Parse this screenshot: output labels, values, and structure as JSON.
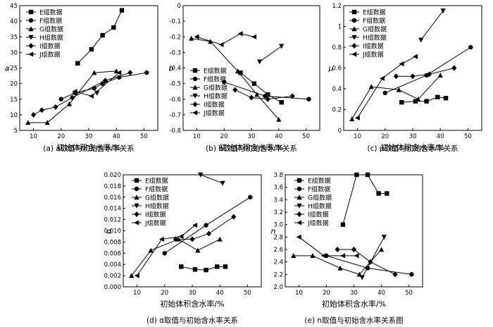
{
  "legend_labels": [
    "E组数据",
    "F组数据",
    "G组数据",
    "H组数据",
    "I组数据",
    "J组数据"
  ],
  "chart_data": [
    {
      "id": "a",
      "type": "line",
      "caption": "(a) a取值与初始含水率关系",
      "xlabel": "初始体积含水率/%",
      "ylabel": "a",
      "xlim": [
        5,
        55
      ],
      "ylim": [
        5,
        45
      ],
      "xticks": [
        10,
        20,
        30,
        40,
        50
      ],
      "yticks": [
        5,
        10,
        15,
        20,
        25,
        30,
        35,
        40,
        45
      ],
      "legend": "top-left",
      "series": [
        {
          "name": "E组数据",
          "marker": "square",
          "x": [
            26,
            31,
            35,
            39,
            42
          ],
          "y": [
            26.5,
            31,
            35.5,
            38,
            43.5
          ]
        },
        {
          "name": "F组数据",
          "marker": "circle",
          "x": [
            20,
            25,
            32,
            35,
            41,
            51
          ],
          "y": [
            15,
            17,
            18.5,
            20,
            22,
            23.5
          ]
        },
        {
          "name": "G组数据",
          "marker": "triangle-up",
          "x": [
            8,
            15,
            23,
            32,
            40
          ],
          "y": [
            7.5,
            7.5,
            13.5,
            23.5,
            24
          ]
        },
        {
          "name": "H组数据",
          "marker": "triangle-down",
          "x": [
            33
          ],
          "y": [
            17
          ]
        },
        {
          "name": "I组数据",
          "marker": "diamond",
          "x": [
            10,
            13,
            18,
            24,
            36,
            45
          ],
          "y": [
            10,
            11.5,
            12.5,
            15.5,
            21,
            23.5
          ]
        },
        {
          "name": "J组数据",
          "marker": "triangle-left",
          "x": [
            25,
            31,
            41
          ],
          "y": [
            17.5,
            16,
            23.5
          ]
        }
      ]
    },
    {
      "id": "b",
      "type": "line",
      "caption": "(b) b取值与初始含水率关系",
      "xlabel": "初始体积含水率/%",
      "ylabel": "b",
      "xlim": [
        5,
        55
      ],
      "ylim": [
        -0.8,
        0
      ],
      "xticks": [
        10,
        20,
        30,
        40,
        50
      ],
      "yticks": [
        0,
        -0.1,
        -0.2,
        -0.3,
        -0.4,
        -0.5,
        -0.6,
        -0.7,
        -0.8
      ],
      "legend": "bottom-left",
      "series": [
        {
          "name": "E组数据",
          "marker": "square",
          "x": [
            26,
            31,
            36,
            41
          ],
          "y": [
            -0.43,
            -0.5,
            -0.57,
            -0.62
          ]
        },
        {
          "name": "F组数据",
          "marker": "circle",
          "x": [
            20,
            35,
            51
          ],
          "y": [
            -0.49,
            -0.58,
            -0.6
          ]
        },
        {
          "name": "G组数据",
          "marker": "triangle-up",
          "x": [
            8,
            15,
            25,
            32,
            40
          ],
          "y": [
            -0.21,
            -0.23,
            -0.42,
            -0.57,
            -0.73
          ]
        },
        {
          "name": "H组数据",
          "marker": "triangle-down",
          "x": [
            33,
            41
          ],
          "y": [
            -0.36,
            -0.26
          ]
        },
        {
          "name": "I组数据",
          "marker": "diamond",
          "x": [
            24,
            30,
            36,
            45
          ],
          "y": [
            -0.54,
            -0.59,
            -0.6,
            -0.58
          ]
        },
        {
          "name": "J组数据",
          "marker": "triangle-left",
          "x": [
            10,
            19,
            26,
            31
          ],
          "y": [
            -0.2,
            -0.25,
            -0.18,
            -0.2
          ]
        }
      ]
    },
    {
      "id": "c",
      "type": "line",
      "caption": "(c) μ取值与初始含水率关系",
      "xlabel": "初始体积含水率/%",
      "ylabel": "μ",
      "xlim": [
        5,
        55
      ],
      "ylim": [
        0,
        1.2
      ],
      "xticks": [
        10,
        20,
        30,
        40,
        50
      ],
      "yticks": [
        0,
        0.2,
        0.4,
        0.6,
        0.8,
        1.0,
        1.2
      ],
      "legend": "top-left",
      "series": [
        {
          "name": "E组数据",
          "marker": "square",
          "x": [
            26,
            31,
            35,
            39,
            42
          ],
          "y": [
            0.27,
            0.28,
            0.28,
            0.32,
            0.31
          ]
        },
        {
          "name": "F组数据",
          "marker": "circle",
          "x": [
            20,
            35,
            51
          ],
          "y": [
            0.36,
            0.53,
            0.8
          ]
        },
        {
          "name": "G组数据",
          "marker": "triangle-up",
          "x": [
            8,
            15,
            25,
            32,
            40
          ],
          "y": [
            0.11,
            0.42,
            0.39,
            0.3,
            0.53
          ]
        },
        {
          "name": "H组数据",
          "marker": "triangle-down",
          "x": [
            33,
            41
          ],
          "y": [
            0.87,
            1.15
          ]
        },
        {
          "name": "I组数据",
          "marker": "diamond",
          "x": [
            24,
            30,
            36,
            45
          ],
          "y": [
            0.52,
            0.52,
            0.54,
            0.6
          ]
        },
        {
          "name": "J组数据",
          "marker": "triangle-left",
          "x": [
            10,
            19,
            26,
            31
          ],
          "y": [
            0.12,
            0.5,
            0.64,
            0.71
          ]
        }
      ]
    },
    {
      "id": "d",
      "type": "line",
      "caption": "(d) α取值与初始含水率关系",
      "xlabel": "初始体积含水率/%",
      "ylabel": "α",
      "xlim": [
        5,
        55
      ],
      "ylim": [
        0,
        0.02
      ],
      "xticks": [
        10,
        20,
        30,
        40,
        50
      ],
      "yticks": [
        "0.000",
        "0.002",
        "0.004",
        "0.006",
        "0.008",
        "0.010",
        "0.012",
        "0.014",
        "0.016",
        "0.018",
        "0.020"
      ],
      "legend": "top-left",
      "series": [
        {
          "name": "E组数据",
          "marker": "square",
          "x": [
            26,
            31,
            35,
            39,
            42
          ],
          "y": [
            0.0036,
            0.0031,
            0.003,
            0.0036,
            0.0036
          ]
        },
        {
          "name": "F组数据",
          "marker": "circle",
          "x": [
            20,
            35,
            51
          ],
          "y": [
            0.006,
            0.011,
            0.016
          ]
        },
        {
          "name": "G组数据",
          "marker": "triangle-up",
          "x": [
            8,
            15,
            25,
            32,
            40
          ],
          "y": [
            0.002,
            0.0065,
            0.0085,
            0.0065,
            0.0085
          ]
        },
        {
          "name": "H组数据",
          "marker": "triangle-down",
          "x": [
            33,
            41
          ],
          "y": [
            0.02,
            0.0185
          ]
        },
        {
          "name": "I组数据",
          "marker": "diamond",
          "x": [
            24,
            30,
            36,
            45
          ],
          "y": [
            0.0085,
            0.0085,
            0.0095,
            0.0125
          ]
        },
        {
          "name": "J组数据",
          "marker": "triangle-left",
          "x": [
            10,
            19,
            26,
            31
          ],
          "y": [
            0.002,
            0.0085,
            0.009,
            0.011
          ]
        }
      ]
    },
    {
      "id": "e",
      "type": "line",
      "caption": "(e) n取值与初始含水率关系图",
      "xlabel": "初始体积含水率/%",
      "ylabel": "n",
      "xlim": [
        5,
        55
      ],
      "ylim": [
        2.0,
        3.8
      ],
      "xticks": [
        10,
        20,
        30,
        40,
        50
      ],
      "yticks": [
        "2.0",
        "2.2",
        "2.4",
        "2.6",
        "2.8",
        "3.0",
        "3.2",
        "3.4",
        "3.6",
        "3.8"
      ],
      "legend": "top-left",
      "series": [
        {
          "name": "E组数据",
          "marker": "square",
          "x": [
            26,
            31,
            35,
            39,
            42
          ],
          "y": [
            3.0,
            3.8,
            3.8,
            3.5,
            3.5
          ]
        },
        {
          "name": "F组数据",
          "marker": "circle",
          "x": [
            20,
            35,
            51
          ],
          "y": [
            2.5,
            2.3,
            2.2
          ]
        },
        {
          "name": "G组数据",
          "marker": "triangle-up",
          "x": [
            8,
            15,
            25,
            32,
            40
          ],
          "y": [
            2.5,
            2.5,
            2.3,
            2.2,
            2.6
          ]
        },
        {
          "name": "H组数据",
          "marker": "triangle-down",
          "x": [
            33,
            41
          ],
          "y": [
            2.15,
            2.8
          ]
        },
        {
          "name": "I组数据",
          "marker": "diamond",
          "x": [
            24,
            30,
            36,
            45
          ],
          "y": [
            2.6,
            2.6,
            2.4,
            2.2
          ]
        },
        {
          "name": "J组数据",
          "marker": "triangle-left",
          "x": [
            10,
            19,
            26,
            31
          ],
          "y": [
            2.8,
            2.5,
            2.5,
            2.5
          ]
        }
      ]
    }
  ]
}
